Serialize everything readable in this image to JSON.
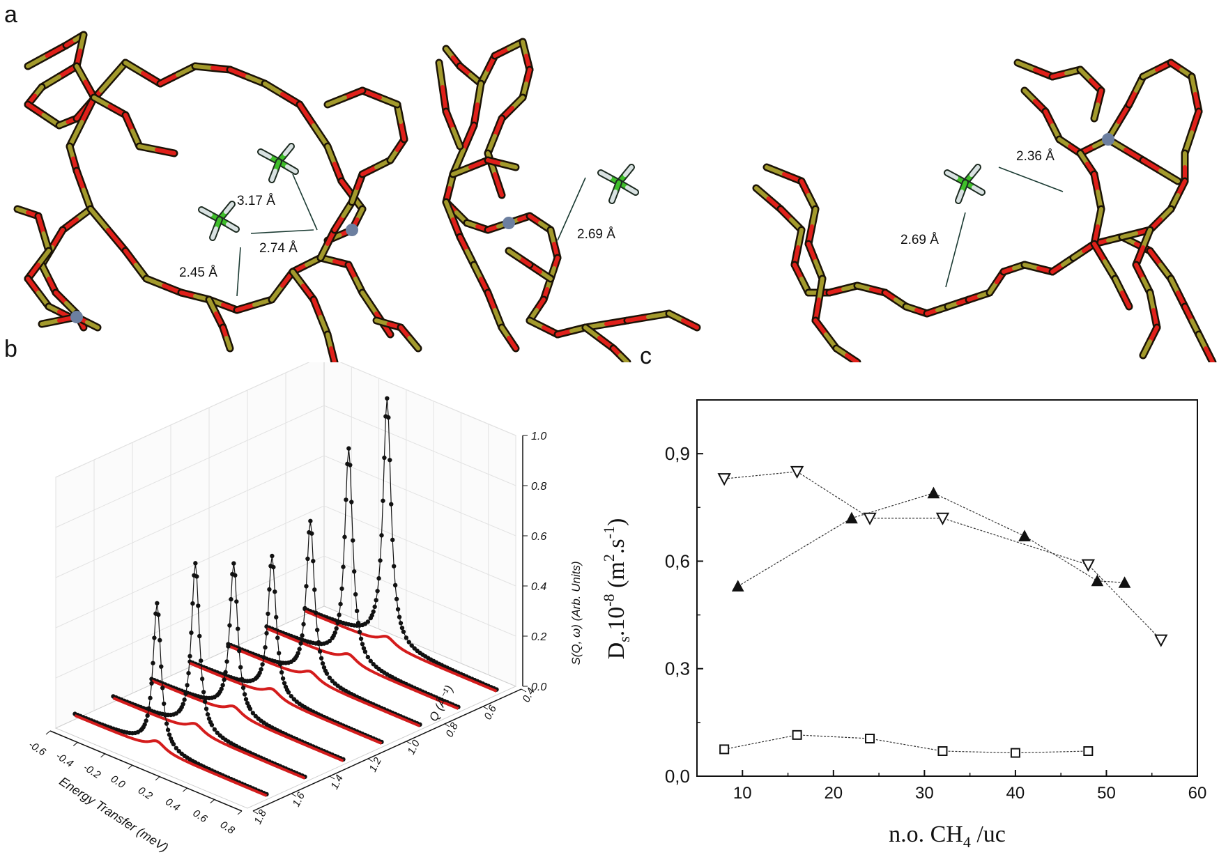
{
  "figure": {
    "panels": [
      "a",
      "b",
      "c"
    ]
  },
  "panel_a": {
    "distance_labels": [
      "3.17 Å",
      "2.74 Å",
      "2.45 Å",
      "2.69 Å",
      "2.36 Å",
      "2.69 Å"
    ],
    "colors": {
      "oxygen": "#e0201a",
      "silicon": "#a39a2c",
      "aluminium": "#6c7fa0",
      "carbon": "#3fbf2a",
      "hydrogen": "#d9e2e2",
      "bond_outline": "#1a1206"
    }
  },
  "panel_b": {
    "y_axis_label": "S(Q, ω) (Arb. Units)",
    "x_axis_label": "Energy Transfer (meV)",
    "q_axis_label": "Q (Å⁻¹)",
    "y_ticks": [
      "0.0",
      "0.2",
      "0.4",
      "0.6",
      "0.8",
      "1.0"
    ],
    "x_ticks": [
      "-0.6",
      "-0.4",
      "-0.2",
      "0.0",
      "0.2",
      "0.4",
      "0.6",
      "0.8"
    ],
    "q_ticks": [
      "0.4",
      "0.6",
      "0.8",
      "1.0",
      "1.2",
      "1.4",
      "1.6",
      "1.8"
    ],
    "colors": {
      "data": "#111111",
      "fit": "#d41c1c"
    }
  },
  "chart_data": [
    {
      "type": "line",
      "panel": "b",
      "description_axes": "3D waterfall",
      "xlabel": "Energy Transfer (meV)",
      "ylabel": "S(Q, ω) (Arb. Units)",
      "zlabel": "Q (Å⁻¹)",
      "xlim": [
        -0.6,
        0.8
      ],
      "ylim": [
        0.0,
        1.0
      ],
      "zlim": [
        0.4,
        1.8
      ],
      "series": [
        {
          "q": 1.7,
          "peak_height": 0.58
        },
        {
          "q": 1.5,
          "peak_height": 0.67
        },
        {
          "q": 1.3,
          "peak_height": 0.6
        },
        {
          "q": 1.1,
          "peak_height": 0.56
        },
        {
          "q": 0.9,
          "peak_height": 0.63
        },
        {
          "q": 0.7,
          "peak_height": 0.85
        },
        {
          "q": 0.5,
          "peak_height": 0.98
        }
      ]
    },
    {
      "type": "scatter",
      "panel": "c",
      "xlabel": "n.o. CH4 /uc",
      "ylabel": "Ds.10-8 (m2.s-1)",
      "xlim": [
        5,
        60
      ],
      "ylim": [
        0.0,
        1.05
      ],
      "x_ticks": [
        "10",
        "20",
        "30",
        "40",
        "50",
        "60"
      ],
      "y_ticks": [
        "0,0",
        "0,3",
        "0,6",
        "0,9"
      ],
      "series": [
        {
          "marker": "open-triangle-down",
          "x": [
            8,
            16,
            24,
            32,
            48,
            56
          ],
          "y": [
            0.83,
            0.85,
            0.72,
            0.72,
            0.59,
            0.38
          ]
        },
        {
          "marker": "filled-triangle-up",
          "x": [
            9.5,
            22,
            31,
            41,
            49,
            52
          ],
          "y": [
            0.53,
            0.72,
            0.79,
            0.67,
            0.545,
            0.54
          ]
        },
        {
          "marker": "open-square",
          "x": [
            8,
            16,
            24,
            32,
            40,
            48
          ],
          "y": [
            0.075,
            0.115,
            0.105,
            0.07,
            0.065,
            0.07
          ]
        }
      ]
    }
  ],
  "panel_c_text": {
    "x_title_main": "n.o. CH",
    "x_title_sub": "4",
    "x_title_tail": " /uc",
    "y_title_D": "D",
    "y_title_s": "s",
    "y_title_mid": ".10",
    "y_title_exp": "-8",
    "y_title_unit1": " (m",
    "y_title_unit_exp1": "2",
    "y_title_unit2": ".s",
    "y_title_unit_exp2": "-1",
    "y_title_close": ")"
  }
}
